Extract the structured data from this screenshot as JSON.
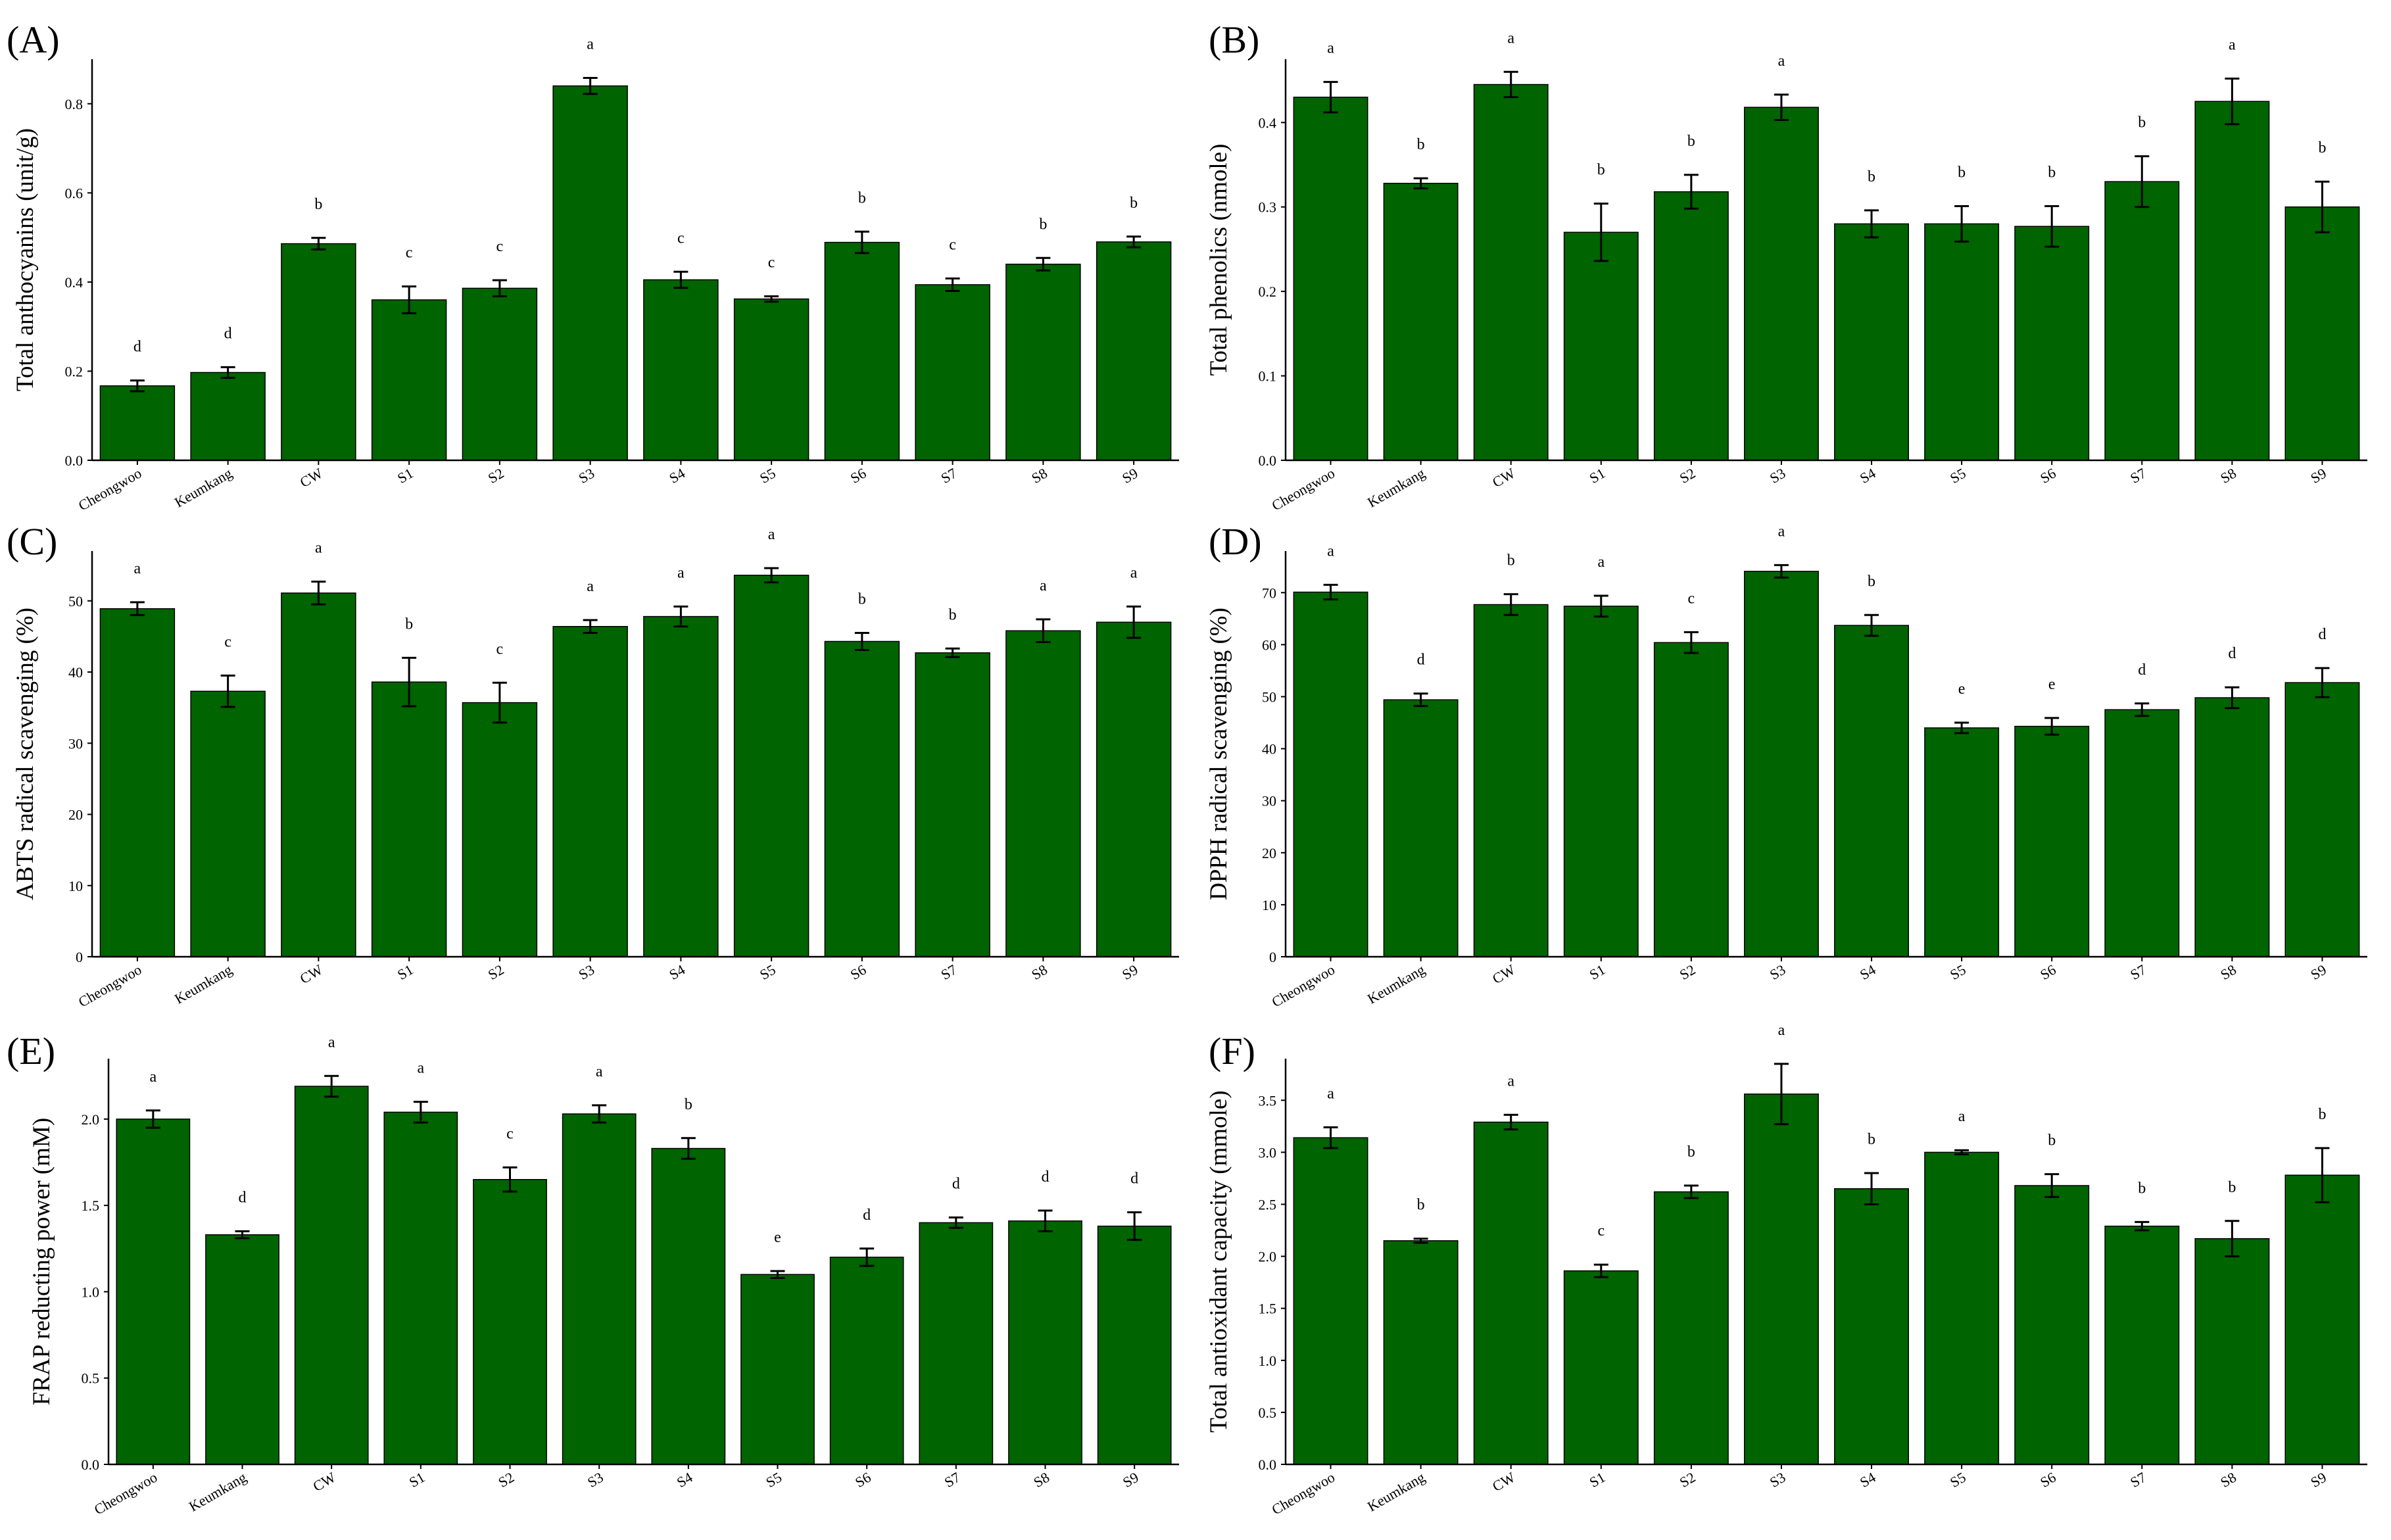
{
  "colors": {
    "bar": "#006400",
    "bar_edge": "#000000",
    "axis": "#000000"
  },
  "chart_data": [
    {
      "panel": "(A)",
      "type": "bar",
      "ylabel": "Total anthocyanins (unit/g)",
      "ylim": [
        0,
        0.9
      ],
      "yticks": [
        "0.0",
        "0.2",
        "0.4",
        "0.6",
        "0.8"
      ],
      "categories": [
        "Cheongwoo",
        "Keumkang",
        "CW",
        "S1",
        "S2",
        "S3",
        "S4",
        "S5",
        "S6",
        "S7",
        "S8",
        "S9"
      ],
      "values": [
        0.167,
        0.197,
        0.486,
        0.36,
        0.386,
        0.84,
        0.405,
        0.362,
        0.489,
        0.394,
        0.44,
        0.49
      ],
      "errors": [
        0.012,
        0.012,
        0.013,
        0.03,
        0.018,
        0.018,
        0.018,
        0.006,
        0.024,
        0.014,
        0.014,
        0.012
      ],
      "significance": [
        "d",
        "d",
        "b",
        "c",
        "c",
        "a",
        "c",
        "c",
        "b",
        "c",
        "b",
        "b"
      ]
    },
    {
      "panel": "(B)",
      "type": "bar",
      "ylabel": "Total phenolics (nmole)",
      "ylim": [
        0,
        0.475
      ],
      "yticks": [
        "0.0",
        "0.1",
        "0.2",
        "0.3",
        "0.4"
      ],
      "categories": [
        "Cheongwoo",
        "Keumkang",
        "CW",
        "S1",
        "S2",
        "S3",
        "S4",
        "S5",
        "S6",
        "S7",
        "S8",
        "S9"
      ],
      "values": [
        0.43,
        0.328,
        0.445,
        0.27,
        0.318,
        0.418,
        0.28,
        0.28,
        0.277,
        0.33,
        0.425,
        0.3
      ],
      "errors": [
        0.018,
        0.006,
        0.015,
        0.034,
        0.02,
        0.015,
        0.016,
        0.021,
        0.024,
        0.03,
        0.027,
        0.03
      ],
      "significance": [
        "a",
        "b",
        "a",
        "b",
        "b",
        "a",
        "b",
        "b",
        "b",
        "b",
        "a",
        "b"
      ]
    },
    {
      "panel": "(C)",
      "type": "bar",
      "ylabel": "ABTS radical scavenging (%)",
      "ylim": [
        0,
        57
      ],
      "yticks": [
        "0",
        "10",
        "20",
        "30",
        "40",
        "50"
      ],
      "categories": [
        "Cheongwoo",
        "Keumkang",
        "CW",
        "S1",
        "S2",
        "S3",
        "S4",
        "S5",
        "S6",
        "S7",
        "S8",
        "S9"
      ],
      "values": [
        48.9,
        37.3,
        51.1,
        38.6,
        35.7,
        46.4,
        47.8,
        53.6,
        44.3,
        42.7,
        45.8,
        47.0
      ],
      "errors": [
        0.9,
        2.2,
        1.6,
        3.4,
        2.8,
        0.9,
        1.4,
        1.0,
        1.2,
        0.6,
        1.6,
        2.2
      ],
      "significance": [
        "a",
        "c",
        "a",
        "b",
        "c",
        "a",
        "a",
        "a",
        "b",
        "b",
        "a",
        "a"
      ]
    },
    {
      "panel": "(D)",
      "type": "bar",
      "ylabel": "DPPH radical scavenging (%)",
      "ylim": [
        0,
        78
      ],
      "yticks": [
        "0",
        "10",
        "20",
        "30",
        "40",
        "50",
        "60",
        "70"
      ],
      "categories": [
        "Cheongwoo",
        "Keumkang",
        "CW",
        "S1",
        "S2",
        "S3",
        "S4",
        "S5",
        "S6",
        "S7",
        "S8",
        "S9"
      ],
      "values": [
        70.1,
        49.4,
        67.7,
        67.4,
        60.4,
        74.1,
        63.7,
        44.0,
        44.3,
        47.5,
        49.8,
        52.7
      ],
      "errors": [
        1.4,
        1.2,
        2.0,
        2.0,
        2.0,
        1.2,
        2.0,
        1.0,
        1.6,
        1.2,
        2.0,
        2.8
      ],
      "significance": [
        "a",
        "d",
        "b",
        "a",
        "c",
        "a",
        "b",
        "e",
        "e",
        "d",
        "d",
        "d"
      ]
    },
    {
      "panel": "(E)",
      "type": "bar",
      "ylabel": "FRAP reducting power (mM)",
      "ylim": [
        0,
        2.35
      ],
      "yticks": [
        "0.0",
        "0.5",
        "1.0",
        "1.5",
        "2.0"
      ],
      "categories": [
        "Cheongwoo",
        "Keumkang",
        "CW",
        "S1",
        "S2",
        "S3",
        "S4",
        "S5",
        "S6",
        "S7",
        "S8",
        "S9"
      ],
      "values": [
        2.0,
        1.33,
        2.19,
        2.04,
        1.65,
        2.03,
        1.83,
        1.1,
        1.2,
        1.4,
        1.41,
        1.38
      ],
      "errors": [
        0.05,
        0.02,
        0.06,
        0.06,
        0.07,
        0.05,
        0.06,
        0.02,
        0.05,
        0.03,
        0.06,
        0.08
      ],
      "significance": [
        "a",
        "d",
        "a",
        "a",
        "c",
        "a",
        "b",
        "e",
        "d",
        "d",
        "d",
        "d"
      ]
    },
    {
      "panel": "(F)",
      "type": "bar",
      "ylabel": "Total antioxidant capacity (mmole)",
      "ylim": [
        0,
        3.9
      ],
      "yticks": [
        "0.0",
        "0.5",
        "1.0",
        "1.5",
        "2.0",
        "2.5",
        "3.0",
        "3.5"
      ],
      "categories": [
        "Cheongwoo",
        "Keumkang",
        "CW",
        "S1",
        "S2",
        "S3",
        "S4",
        "S5",
        "S6",
        "S7",
        "S8",
        "S9"
      ],
      "values": [
        3.14,
        2.15,
        3.29,
        1.86,
        2.62,
        3.56,
        2.65,
        3.0,
        2.68,
        2.29,
        2.17,
        2.78
      ],
      "errors": [
        0.1,
        0.02,
        0.07,
        0.06,
        0.06,
        0.29,
        0.15,
        0.02,
        0.11,
        0.04,
        0.17,
        0.26
      ],
      "significance": [
        "a",
        "b",
        "a",
        "c",
        "b",
        "a",
        "b",
        "a",
        "b",
        "b",
        "b",
        "b"
      ]
    }
  ]
}
